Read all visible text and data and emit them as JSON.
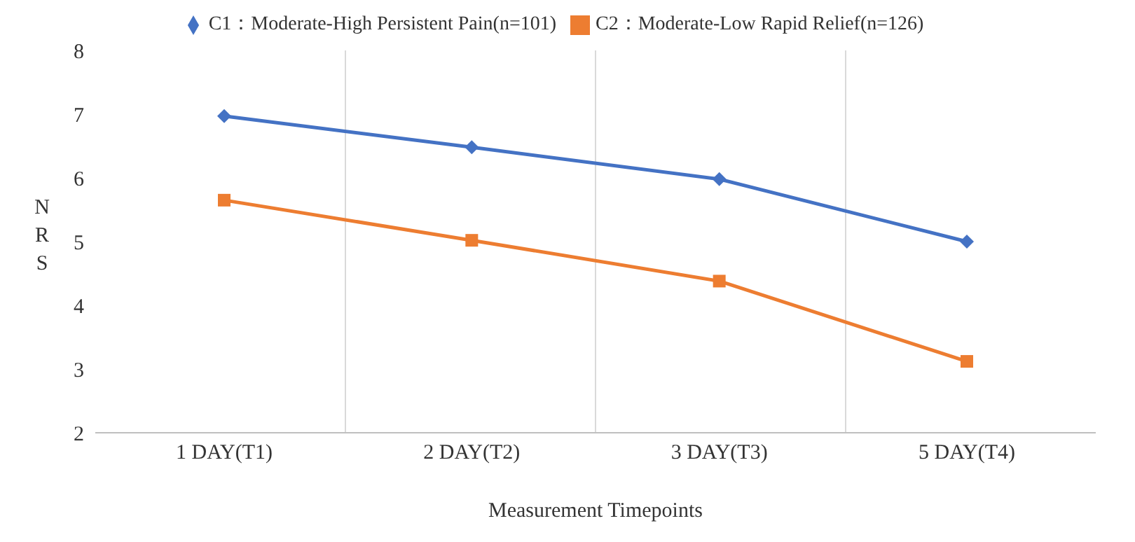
{
  "chart_data": {
    "type": "line",
    "xlabel": "Measurement Timepoints",
    "ylabel": "NRS",
    "categories": [
      "1 DAY(T1)",
      "2 DAY(T2)",
      "3 DAY(T3)",
      "5 DAY(T4)"
    ],
    "series": [
      {
        "name": "C1：Moderate-High Persistent Pain(n=101)",
        "color": "#4472c4",
        "marker": "diamond",
        "values": [
          6.97,
          6.48,
          5.98,
          5.0
        ]
      },
      {
        "name": "C2：Moderate-Low Rapid Relief(n=126)",
        "color": "#ed7d31",
        "marker": "square",
        "values": [
          5.65,
          5.02,
          4.38,
          3.12
        ]
      }
    ],
    "ylim": [
      2,
      8
    ],
    "yticks": [
      2,
      3,
      4,
      5,
      6,
      7,
      8
    ],
    "grid": "x",
    "legend": "top",
    "line_style": "solid"
  }
}
